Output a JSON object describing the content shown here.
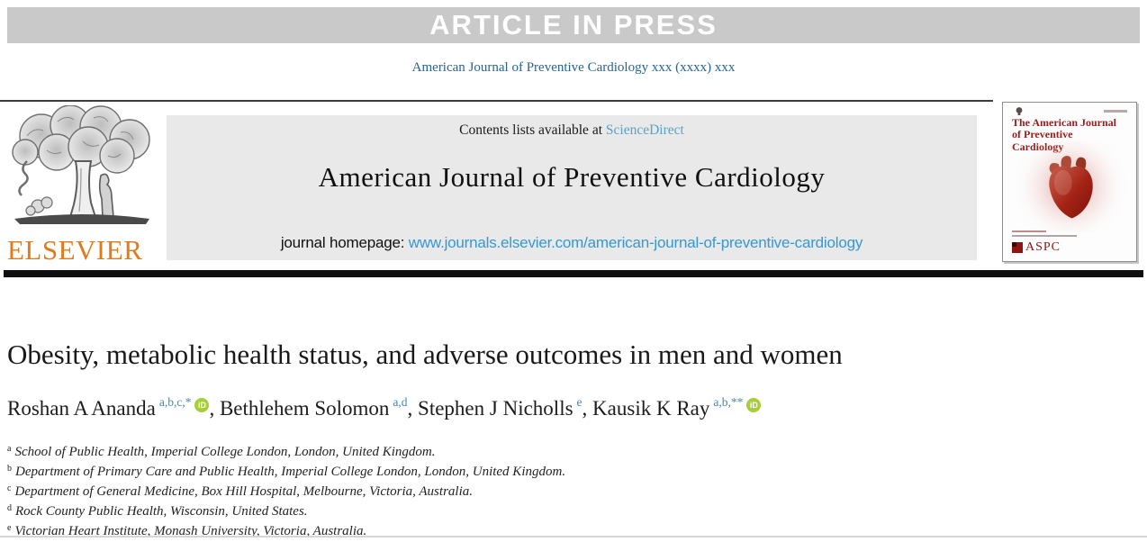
{
  "banner": {
    "text": "ARTICLE IN PRESS"
  },
  "journal_ref": "American Journal of Preventive Cardiology xxx (xxxx) xxx",
  "publisher": {
    "name": "ELSEVIER"
  },
  "masthead": {
    "contents_prefix": "Contents lists available at ",
    "contents_link": "ScienceDirect",
    "journal_title": "American Journal of Preventive Cardiology",
    "homepage_prefix": "journal homepage: ",
    "homepage_link": "www.journals.elsevier.com/american-journal-of-preventive-cardiology"
  },
  "cover": {
    "title": "The American Journal of Preventive Cardiology",
    "society": "ASPC"
  },
  "article": {
    "title": "Obesity, metabolic health status, and adverse outcomes in men and women",
    "authors": [
      {
        "name": "Roshan A Ananda",
        "sup": "a,b,c,*",
        "orcid": true
      },
      {
        "name": "Bethlehem Solomon",
        "sup": "a,d",
        "orcid": false
      },
      {
        "name": "Stephen J Nicholls",
        "sup": "e",
        "orcid": false
      },
      {
        "name": "Kausik K Ray",
        "sup": "a,b,**",
        "orcid": true
      }
    ],
    "author_separator": ", ",
    "affiliations": [
      {
        "sup": "a",
        "text": "School of Public Health, Imperial College London, London, United Kingdom."
      },
      {
        "sup": "b",
        "text": "Department of Primary Care and Public Health, Imperial College London, London, United Kingdom."
      },
      {
        "sup": "c",
        "text": "Department of General Medicine, Box Hill Hospital, Melbourne, Victoria, Australia."
      },
      {
        "sup": "d",
        "text": "Rock County Public Health, Wisconsin, United States."
      },
      {
        "sup": "e",
        "text": "Victorian Heart Institute, Monash University, Victoria, Australia."
      }
    ]
  },
  "colors": {
    "banner_bg": "#c9c9c9",
    "elsevier_orange": "#e07a1a",
    "journal_ref_blue": "#27648e",
    "link_blue": "#3598d2",
    "sciencedirect_blue": "#5aa2c9",
    "author_sup_blue": "#3f87bd",
    "orcid_green": "#a6ce39",
    "cover_red": "#9a1b1b"
  }
}
